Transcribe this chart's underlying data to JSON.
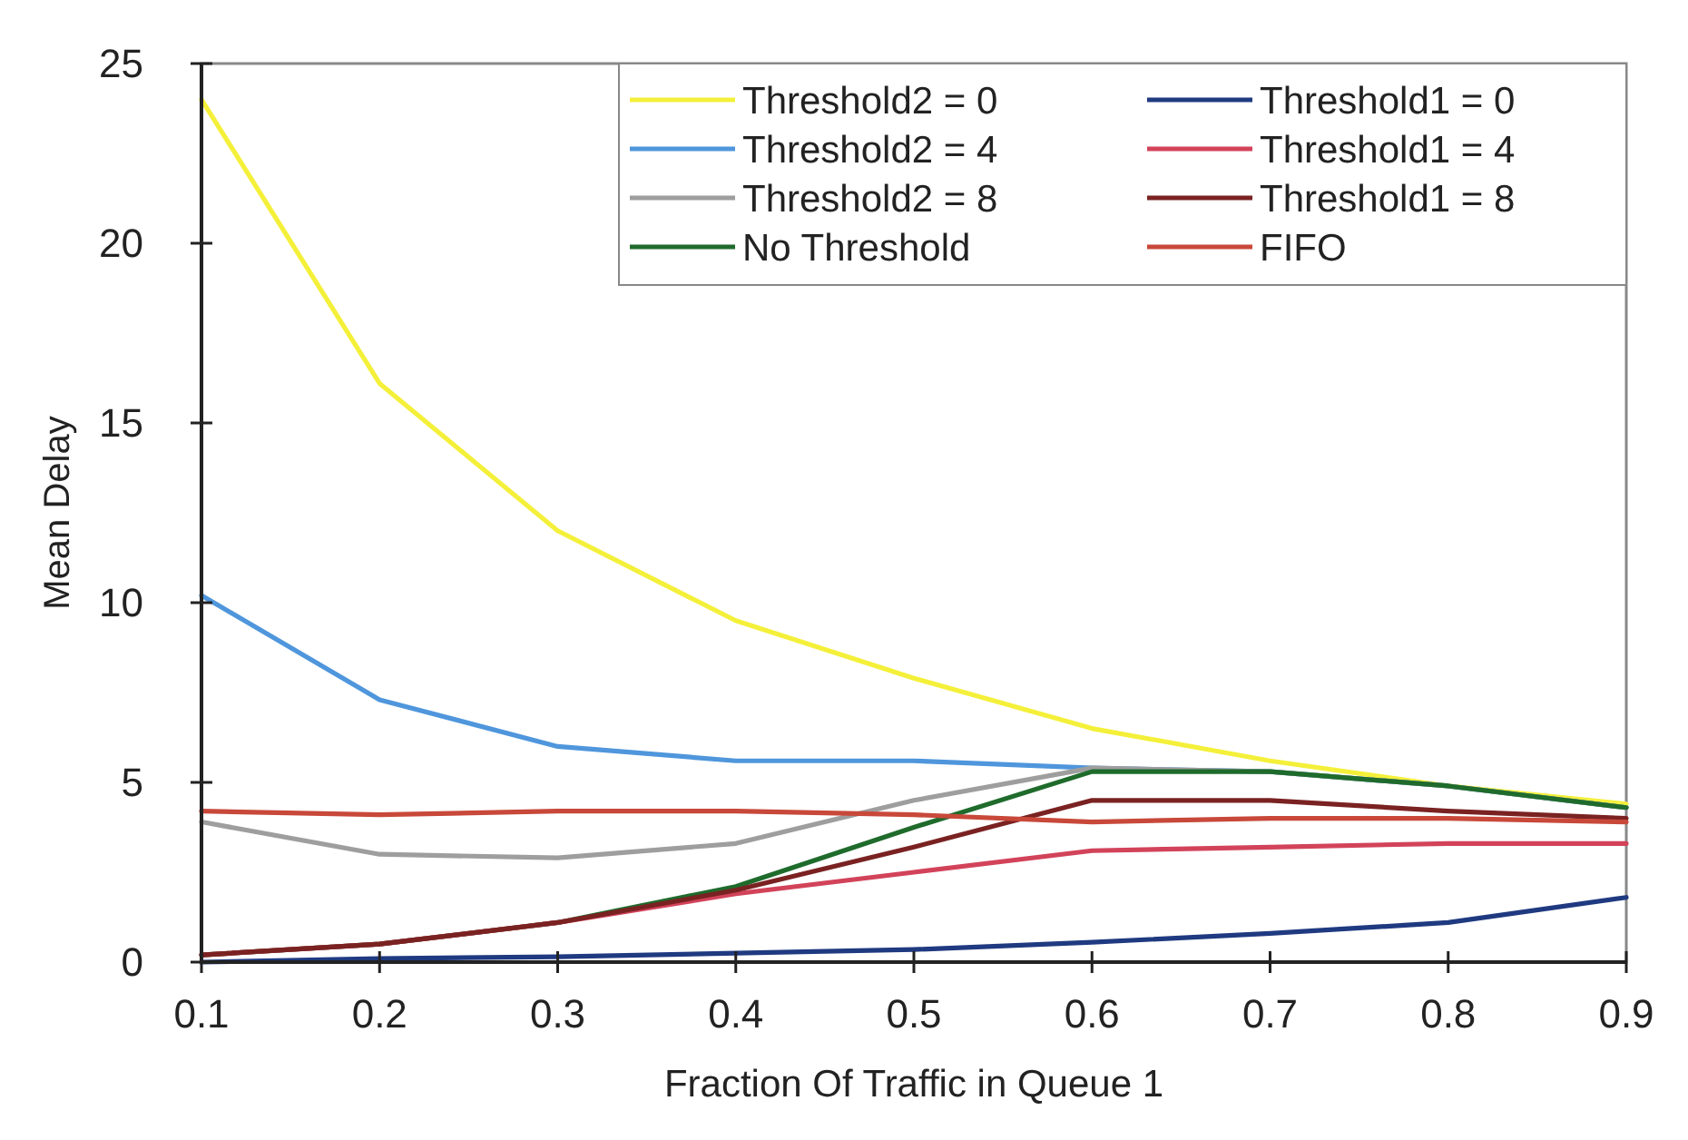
{
  "chart_data": {
    "type": "line",
    "xlabel": "Fraction Of Traffic in Queue 1",
    "ylabel": "Mean Delay",
    "x": [
      0.1,
      0.2,
      0.3,
      0.4,
      0.5,
      0.6,
      0.7,
      0.8,
      0.9
    ],
    "xlim": [
      0.1,
      0.9
    ],
    "xticks": [
      0.1,
      0.2,
      0.3,
      0.4,
      0.5,
      0.6,
      0.7,
      0.8,
      0.9
    ],
    "ylim": [
      0,
      25
    ],
    "yticks": [
      0,
      5,
      10,
      15,
      20,
      25
    ],
    "grid": false,
    "legend": "top right",
    "marker": "none",
    "line_style": "solid",
    "series": [
      {
        "name": "Threshold2 = 0",
        "color": "#f4f03a",
        "values": [
          24,
          16.1,
          12,
          9.5,
          7.9,
          6.5,
          5.6,
          4.9,
          4.4
        ]
      },
      {
        "name": "Threshold2 = 4",
        "color": "#4f96dc",
        "values": [
          10.2,
          7.3,
          6,
          5.6,
          5.6,
          5.4,
          5.3,
          4.9,
          4.3
        ]
      },
      {
        "name": "Threshold2 = 8",
        "color": "#9e9e9e",
        "values": [
          3.9,
          3,
          2.9,
          3.3,
          4.5,
          5.4,
          5.3,
          4.9,
          4.3
        ]
      },
      {
        "name": "No Threshold",
        "color": "#1f6b2c",
        "values": [
          0.2,
          0.5,
          1.1,
          2.1,
          3.75,
          5.3,
          5.3,
          4.9,
          4.3
        ]
      },
      {
        "name": "Threshold1 = 0",
        "color": "#1f3a80",
        "values": [
          0,
          0.1,
          0.15,
          0.25,
          0.35,
          0.55,
          0.8,
          1.1,
          1.8
        ]
      },
      {
        "name": "Threshold1 = 4",
        "color": "#d2435a",
        "values": [
          0.2,
          0.5,
          1.1,
          1.9,
          2.5,
          3.1,
          3.2,
          3.3,
          3.3
        ]
      },
      {
        "name": "Threshold1 = 8",
        "color": "#7a2222",
        "values": [
          0.2,
          0.5,
          1.1,
          2,
          3.2,
          4.5,
          4.5,
          4.2,
          4
        ]
      },
      {
        "name": "FIFO",
        "color": "#c8483a",
        "values": [
          4.2,
          4.1,
          4.2,
          4.2,
          4.1,
          3.9,
          4,
          4,
          3.9
        ]
      }
    ]
  }
}
